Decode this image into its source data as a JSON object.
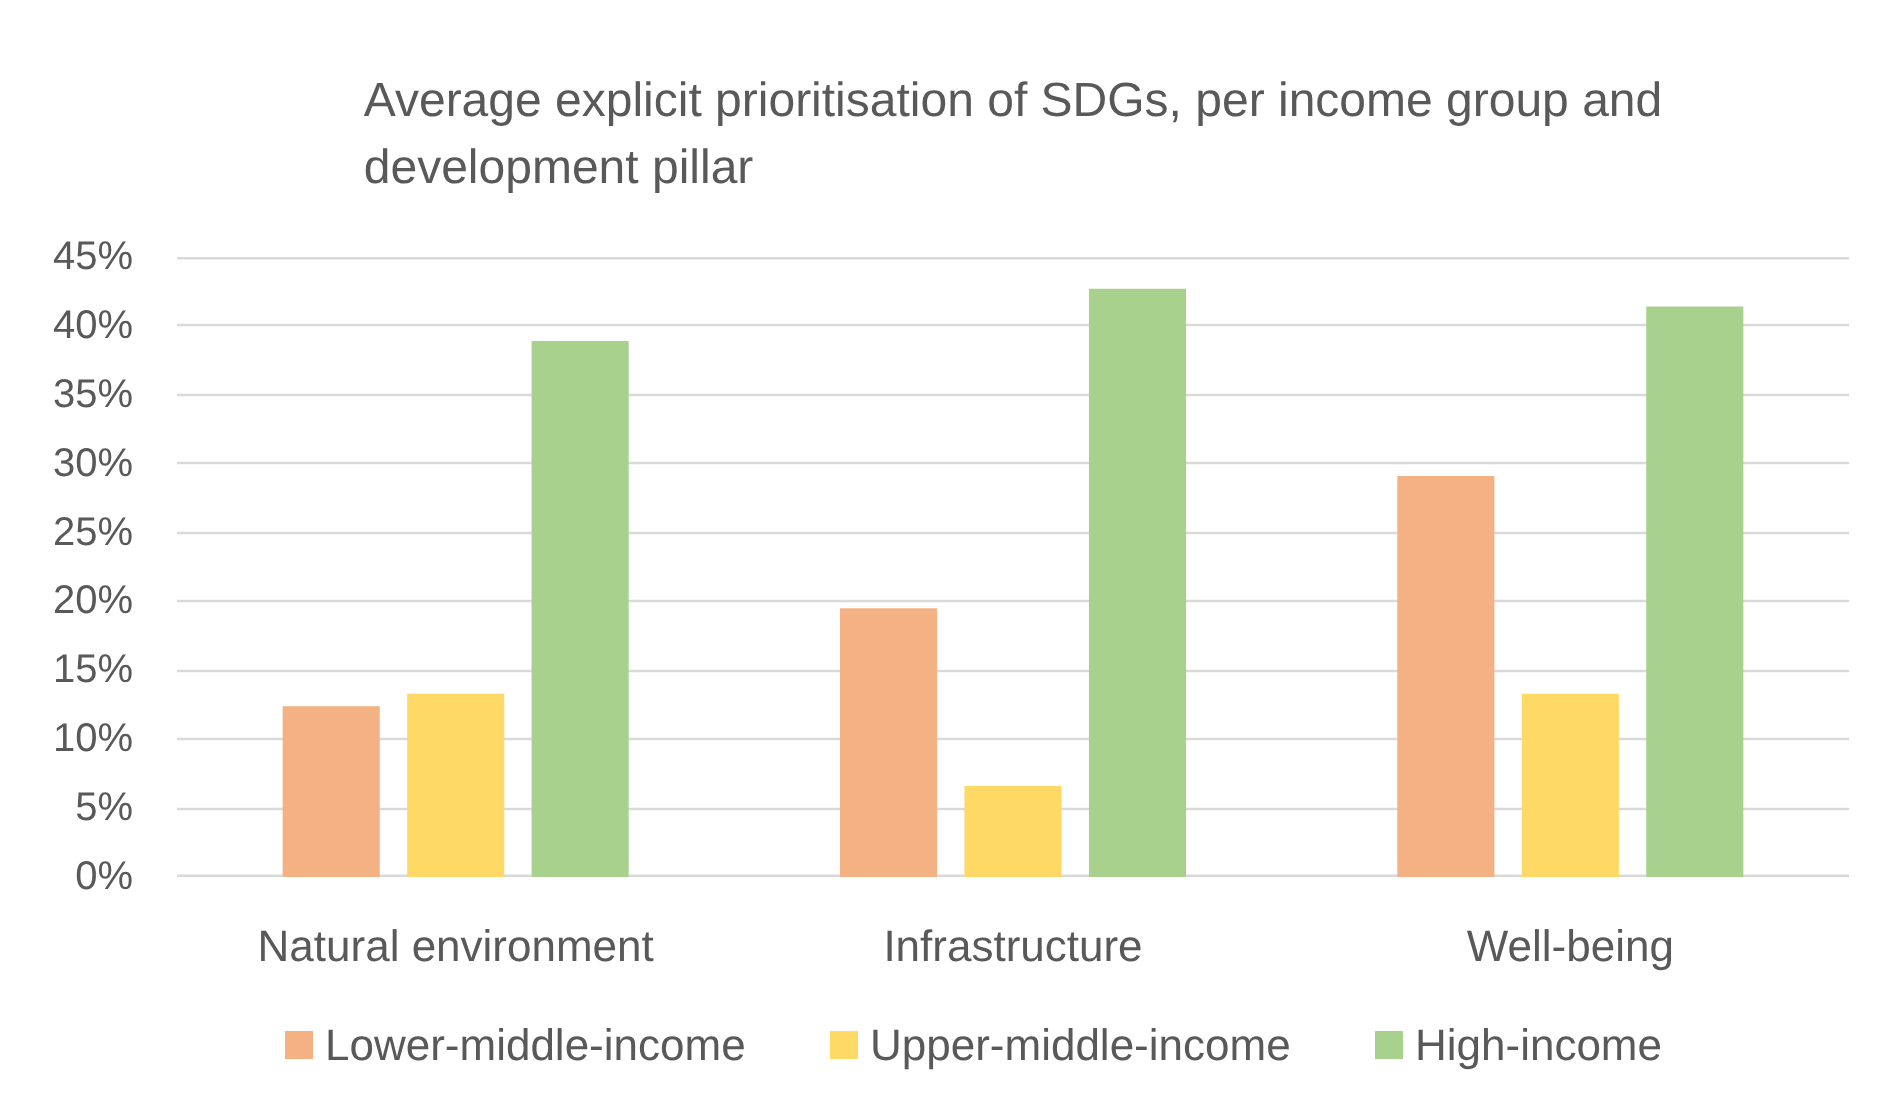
{
  "chart_data": {
    "type": "bar",
    "title": "Average explicit prioritisation of SDGs, per income group and development pillar",
    "categories": [
      "Natural environment",
      "Infrastructure",
      "Well-being"
    ],
    "series": [
      {
        "name": "Lower-middle-income",
        "color": "#f4b183",
        "values": [
          12.4,
          19.5,
          29.1
        ]
      },
      {
        "name": "Upper-middle-income",
        "color": "#ffd966",
        "values": [
          13.3,
          6.6,
          13.3
        ]
      },
      {
        "name": "High-income",
        "color": "#a9d18e",
        "values": [
          38.9,
          42.7,
          41.4
        ]
      }
    ],
    "ylim": [
      0,
      45
    ],
    "yticks": [
      {
        "value": 0,
        "label": "0%"
      },
      {
        "value": 5,
        "label": "5%"
      },
      {
        "value": 10,
        "label": "10%"
      },
      {
        "value": 15,
        "label": "15%"
      },
      {
        "value": 20,
        "label": "20%"
      },
      {
        "value": 25,
        "label": "25%"
      },
      {
        "value": 30,
        "label": "30%"
      },
      {
        "value": 35,
        "label": "35%"
      },
      {
        "value": 40,
        "label": "40%"
      },
      {
        "value": 45,
        "label": "45%"
      }
    ],
    "grid": "y",
    "legend": "bottom"
  }
}
